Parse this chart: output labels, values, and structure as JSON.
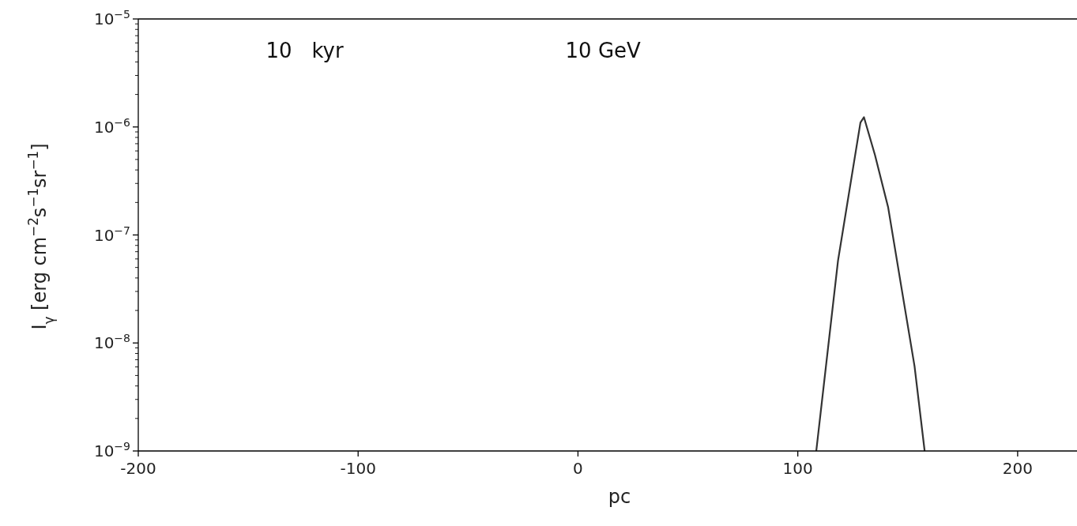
{
  "chart_data": {
    "type": "line",
    "xlabel": "pc",
    "ylabel": "I$_{γ}$ [erg cm$^{−2}$s$^{−1}$sr$^{−1}$]",
    "annotations": [
      "10   kyr",
      "10 GeV"
    ],
    "log": "y",
    "xlim": [
      -200,
      227
    ],
    "ylim": [
      1e-09,
      1e-05
    ],
    "xticks": [
      -200,
      -100,
      0,
      100,
      200
    ],
    "yticks": [
      {
        "value": 1e-09,
        "label": "10$^{−9}$"
      },
      {
        "value": 2e-09,
        "label": null
      },
      {
        "value": 3e-09,
        "label": null
      },
      {
        "value": 4e-09,
        "label": null
      },
      {
        "value": 5e-09,
        "label": null
      },
      {
        "value": 6e-09,
        "label": null
      },
      {
        "value": 7e-09,
        "label": null
      },
      {
        "value": 8e-09,
        "label": null
      },
      {
        "value": 9e-09,
        "label": null
      },
      {
        "value": 1e-08,
        "label": "10$^{−8}$"
      },
      {
        "value": 2e-08,
        "label": null
      },
      {
        "value": 3e-08,
        "label": null
      },
      {
        "value": 4e-08,
        "label": null
      },
      {
        "value": 5e-08,
        "label": null
      },
      {
        "value": 6e-08,
        "label": null
      },
      {
        "value": 7e-08,
        "label": null
      },
      {
        "value": 8e-08,
        "label": null
      },
      {
        "value": 9e-08,
        "label": null
      },
      {
        "value": 1e-07,
        "label": "10$^{−7}$"
      },
      {
        "value": 2e-07,
        "label": null
      },
      {
        "value": 3e-07,
        "label": null
      },
      {
        "value": 4e-07,
        "label": null
      },
      {
        "value": 5e-07,
        "label": null
      },
      {
        "value": 6e-07,
        "label": null
      },
      {
        "value": 7e-07,
        "label": null
      },
      {
        "value": 8e-07,
        "label": null
      },
      {
        "value": 9e-07,
        "label": null
      },
      {
        "value": 1e-06,
        "label": "10$^{−6}$"
      },
      {
        "value": 2e-06,
        "label": null
      },
      {
        "value": 3e-06,
        "label": null
      },
      {
        "value": 4e-06,
        "label": null
      },
      {
        "value": 5e-06,
        "label": null
      },
      {
        "value": 6e-06,
        "label": null
      },
      {
        "value": 7e-06,
        "label": null
      },
      {
        "value": 8e-06,
        "label": null
      },
      {
        "value": 9e-06,
        "label": null
      },
      {
        "value": 1e-05,
        "label": "10$^{−5}$"
      }
    ],
    "grid": false,
    "marker": "none",
    "line_style": "solid",
    "series": [
      {
        "color": "#333333",
        "x": [
          108.4,
          118.3,
          128.5,
          130.1,
          135.1,
          141.1,
          147.1,
          153.1,
          157.7
        ],
        "values": [
          1e-09,
          5.8e-08,
          1.1e-06,
          1.23e-06,
          5.5e-07,
          1.8e-07,
          3.3e-08,
          6.1e-09,
          1e-09
        ]
      }
    ]
  }
}
